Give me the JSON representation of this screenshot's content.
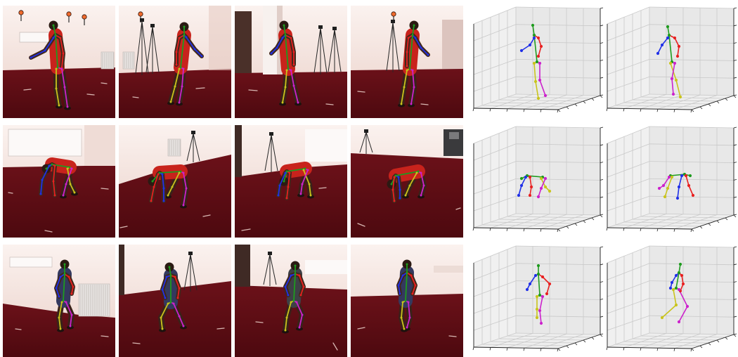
{
  "figure": {
    "background": "#ffffff"
  },
  "colors": {
    "spine": "#1e9b1e",
    "left_arm": "#2030e8",
    "right_arm": "#e82020",
    "leg_yellow": "#c9c41c",
    "leg_magenta": "#cc22cc",
    "wall_top": "#fbf2ef",
    "wall_bottom": "#ead0c8",
    "floor_top": "#6b1119",
    "floor_bottom": "#4d090f",
    "pane_left": "#f0f0f0",
    "pane_right": "#e8e8e8",
    "pane_floor": "#eeeeee",
    "grid": "#c9c9c9",
    "axis": "#1a1a1a"
  }
}
